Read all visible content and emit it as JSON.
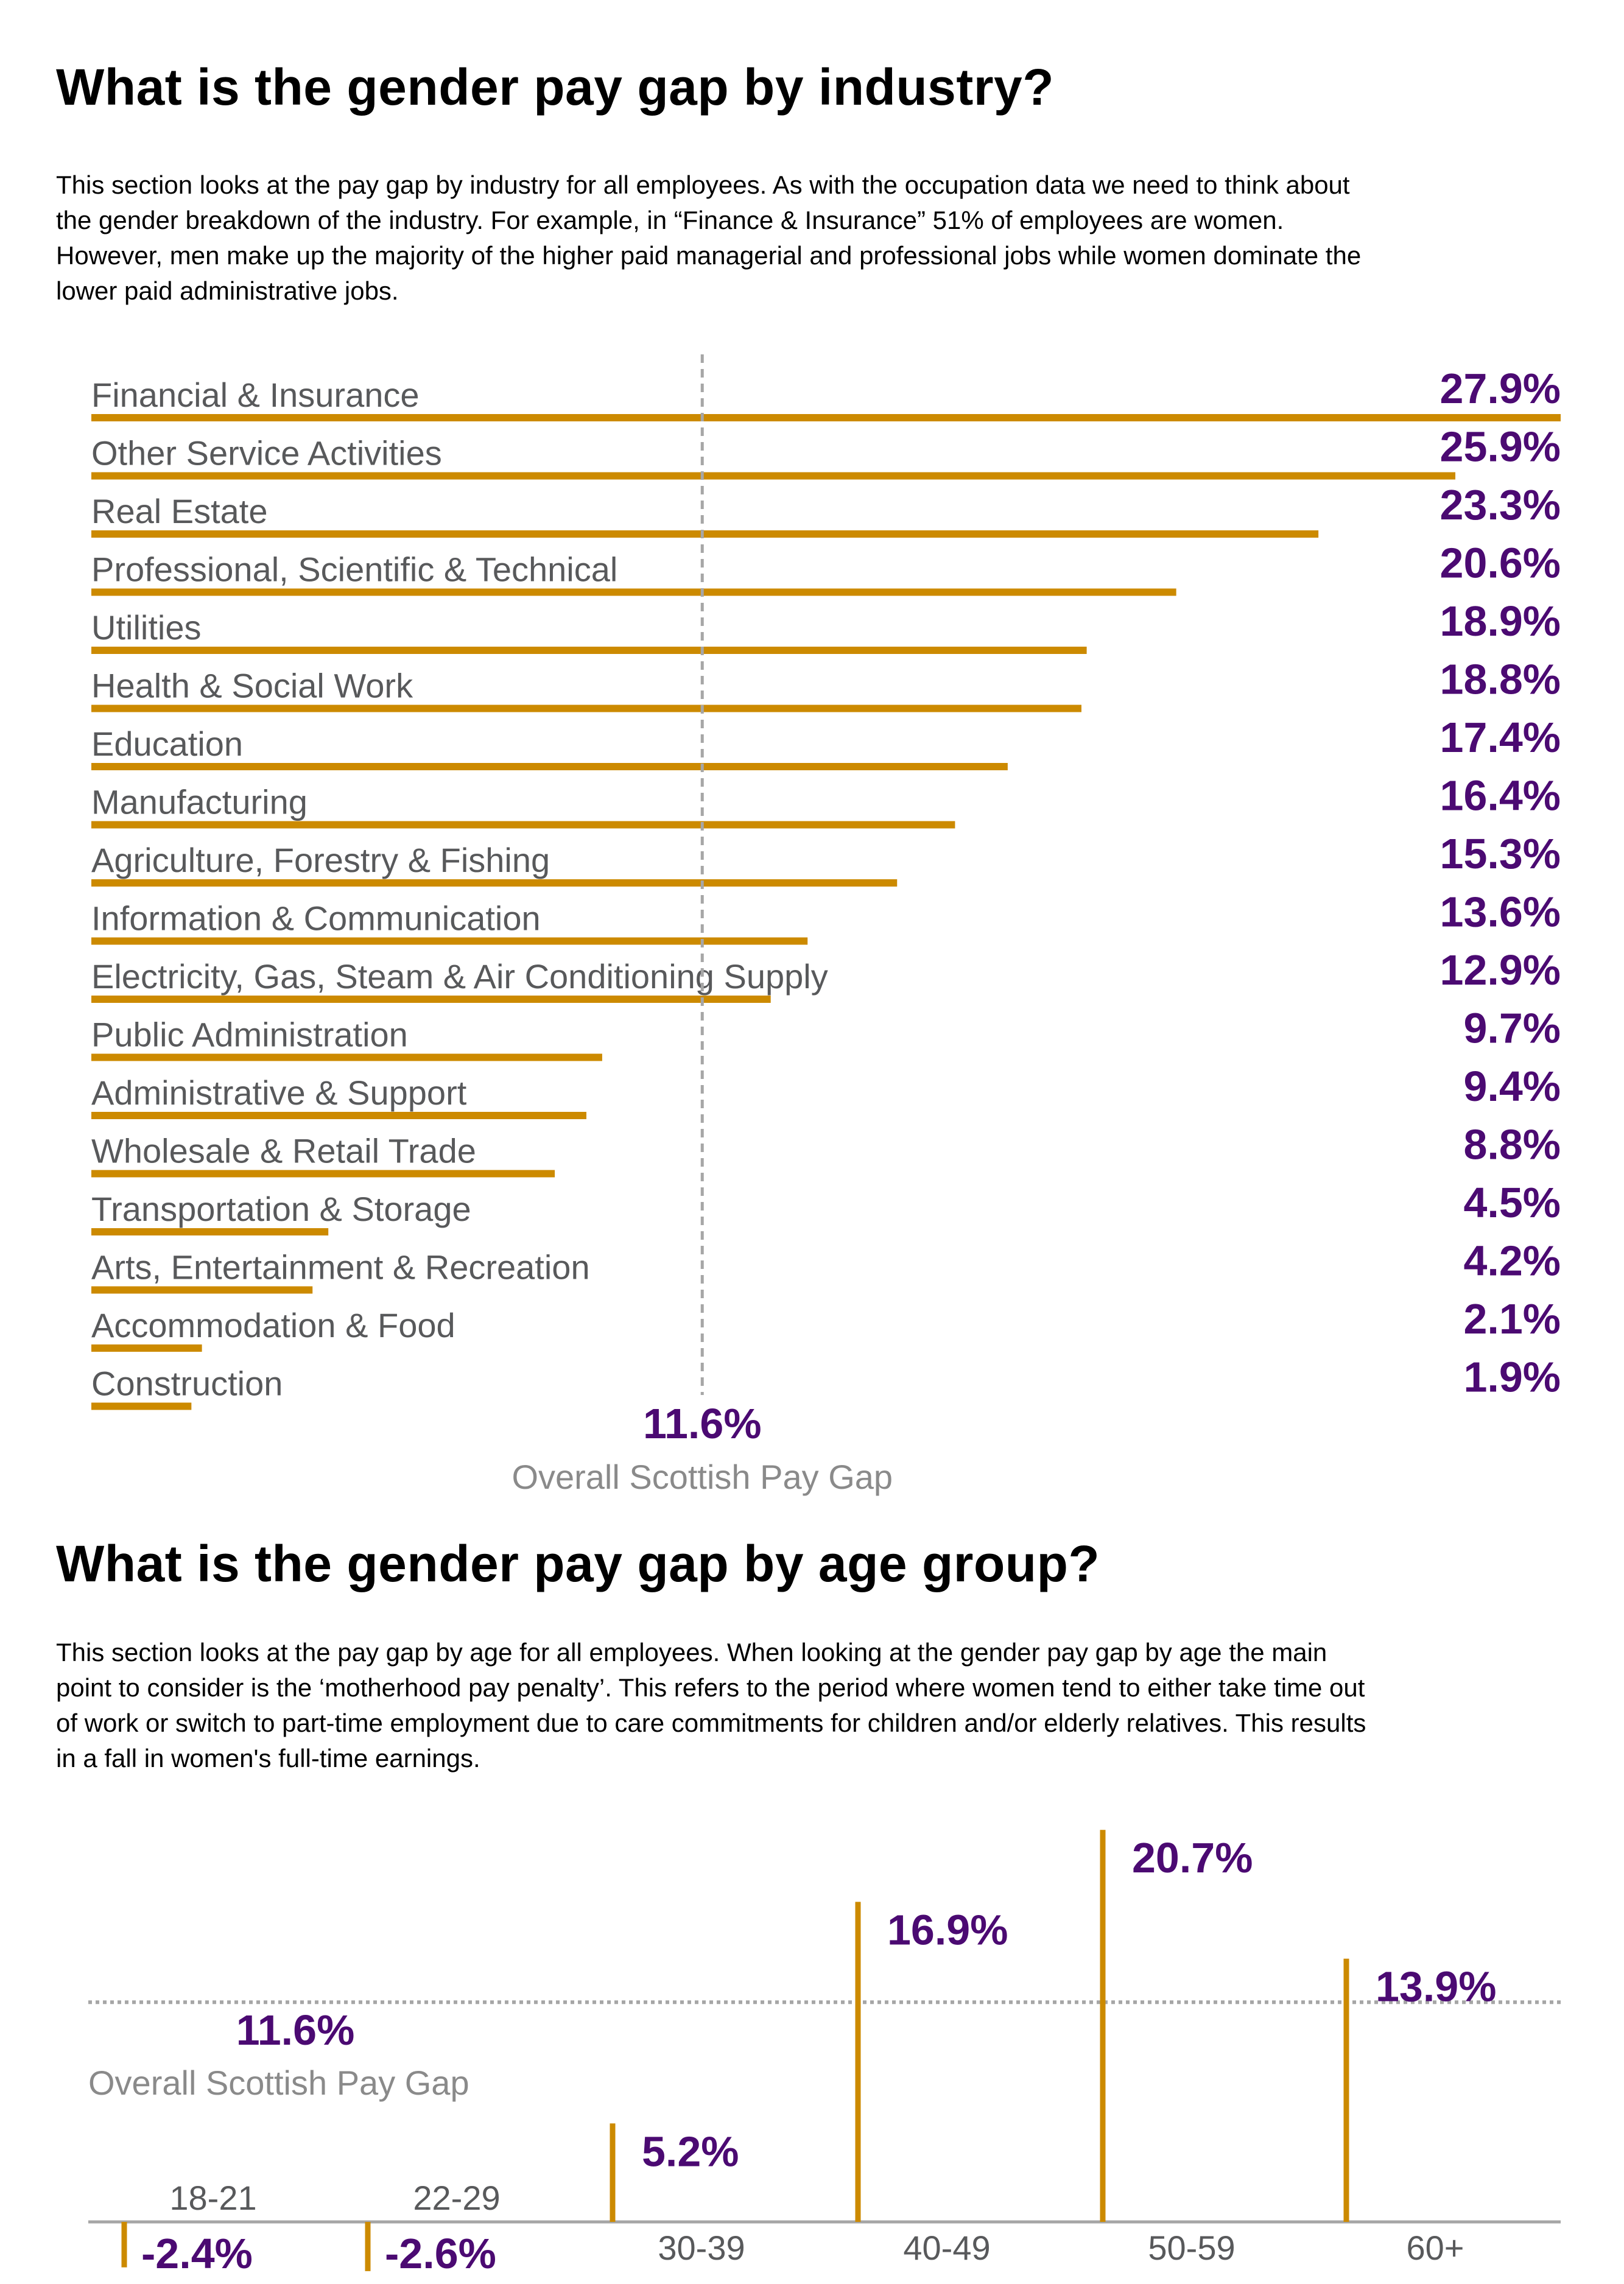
{
  "section1": {
    "title": "What is the gender pay gap by industry?",
    "paragraph_lines": [
      "This section looks at the pay gap by industry for all employees. As with the occupation data we need to think about",
      "the gender breakdown of the industry.  For example, in “Finance & Insurance” 51% of employees are women.",
      "However, men make up the majority of the higher paid managerial and professional jobs while women dominate the",
      "lower paid administrative jobs."
    ]
  },
  "section2": {
    "title": "What is the gender pay gap by age group?",
    "paragraph_lines": [
      "This section looks at the pay gap by age for all employees. When looking at the gender pay gap by age the main",
      "point to consider is the ‘motherhood pay penalty’. This refers to the period where women tend to either take time out",
      "of work or switch to part-time employment due to care commitments for children and/or elderly relatives. This results",
      "in a fall in women's full-time earnings."
    ]
  },
  "chart_data": [
    {
      "type": "bar",
      "orientation": "horizontal",
      "categories": [
        "Financial & Insurance",
        "Other Service Activities",
        "Real Estate",
        "Professional, Scientific & Technical",
        "Utilities",
        "Health & Social Work",
        "Education",
        "Manufacturing",
        "Agriculture, Forestry & Fishing",
        "Information & Communication",
        "Electricity, Gas, Steam & Air Conditioning Supply",
        "Public Administration",
        "Administrative & Support",
        "Wholesale & Retail Trade",
        "Transportation & Storage",
        "Arts, Entertainment & Recreation",
        "Accommodation & Food",
        "Construction"
      ],
      "values": [
        27.9,
        25.9,
        23.3,
        20.6,
        18.9,
        18.8,
        17.4,
        16.4,
        15.3,
        13.6,
        12.9,
        9.7,
        9.4,
        8.8,
        4.5,
        4.2,
        2.1,
        1.9
      ],
      "value_labels": [
        "27.9%",
        "25.9%",
        "23.3%",
        "20.6%",
        "18.9%",
        "18.8%",
        "17.4%",
        "16.4%",
        "15.3%",
        "13.6%",
        "12.9%",
        "9.7%",
        "9.4%",
        "8.8%",
        "4.5%",
        "4.2%",
        "2.1%",
        "1.9%"
      ],
      "xlim": [
        0,
        27.9
      ],
      "reference_line": {
        "value": 11.6,
        "label": "11.6%",
        "caption": "Overall Scottish Pay Gap",
        "style": "dashed"
      },
      "grid": false,
      "colors": {
        "bar": "#cc8a00",
        "value": "#4b0a72",
        "label": "#58595b",
        "reference": "#a6a6a6"
      }
    },
    {
      "type": "bar",
      "orientation": "vertical",
      "categories": [
        "18-21",
        "22-29",
        "30-39",
        "40-49",
        "50-59",
        "60+"
      ],
      "values": [
        -2.4,
        -2.6,
        5.2,
        16.9,
        20.7,
        13.9
      ],
      "value_labels": [
        "-2.4%",
        "-2.6%",
        "5.2%",
        "16.9%",
        "20.7%",
        "13.9%"
      ],
      "ylim": [
        -3,
        21
      ],
      "reference_line": {
        "value": 11.6,
        "label": "11.6%",
        "caption": "Overall Scottish Pay Gap",
        "style": "dotted"
      },
      "grid": false,
      "colors": {
        "bar": "#cc8a00",
        "value": "#4b0a72",
        "label": "#58595b",
        "reference": "#a6a6a6",
        "axis": "#a6a6a6"
      }
    }
  ]
}
